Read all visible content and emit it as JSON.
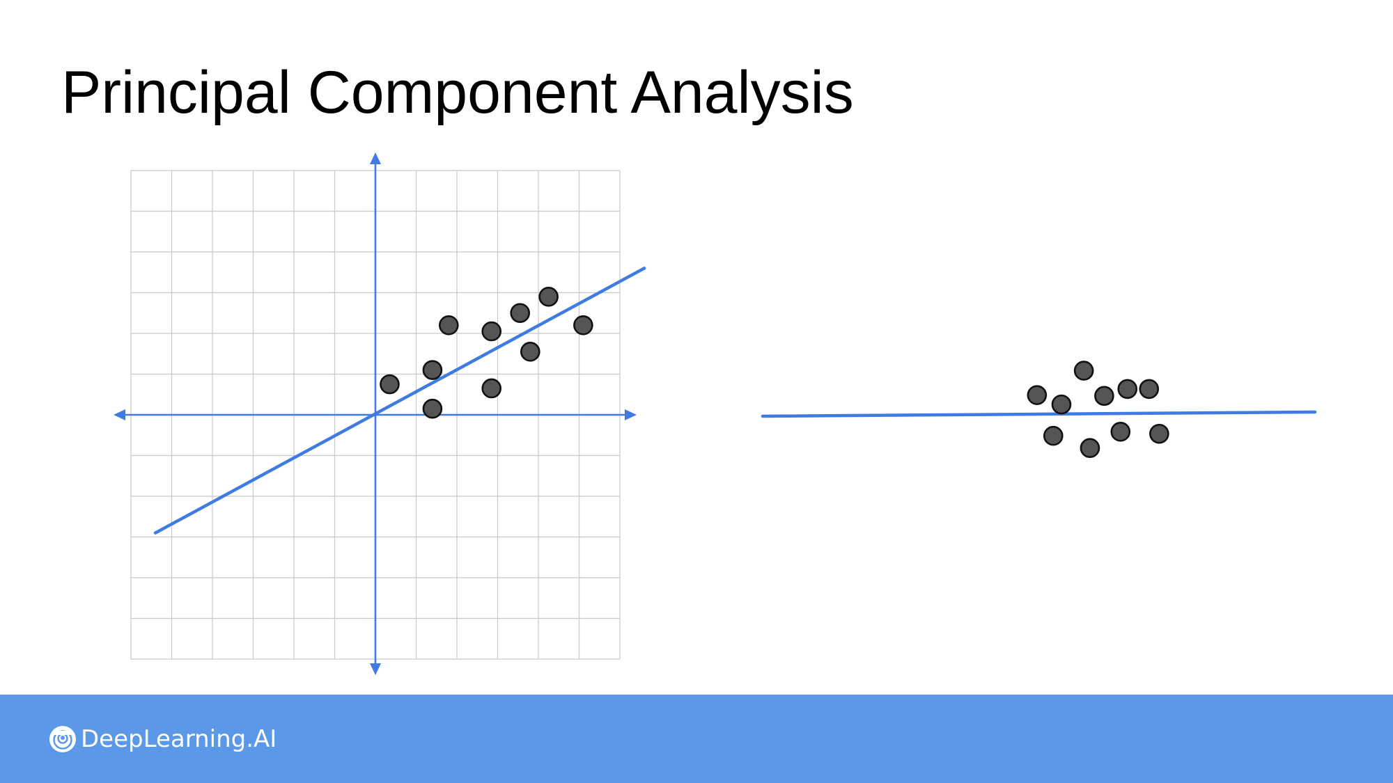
{
  "slide": {
    "title": "Principal Component Analysis"
  },
  "colors": {
    "axis": "#3f7be3",
    "grid": "#c8c8c8",
    "point_fill": "#555555",
    "point_stroke": "#111111",
    "footer": "#5b99e8",
    "brand_text": "#ffffff"
  },
  "left_plot": {
    "grid_cells": 12,
    "points": [
      [
        0.35,
        0.75
      ],
      [
        1.4,
        1.1
      ],
      [
        1.4,
        0.15
      ],
      [
        1.8,
        2.2
      ],
      [
        2.85,
        2.05
      ],
      [
        2.85,
        0.65
      ],
      [
        3.55,
        2.5
      ],
      [
        3.8,
        1.55
      ],
      [
        4.25,
        2.9
      ],
      [
        5.1,
        2.2
      ]
    ],
    "principal_axis": {
      "x": [
        -5.4,
        6.6
      ],
      "y": [
        -2.9,
        3.6
      ]
    }
  },
  "right_plot": {
    "points": [
      [
        -1.9,
        0.45
      ],
      [
        -1.5,
        -0.55
      ],
      [
        -1.3,
        0.22
      ],
      [
        -0.75,
        1.05
      ],
      [
        -0.6,
        -0.85
      ],
      [
        -0.25,
        0.43
      ],
      [
        0.15,
        -0.45
      ],
      [
        0.32,
        0.6
      ],
      [
        0.85,
        0.6
      ],
      [
        1.1,
        -0.5
      ]
    ]
  },
  "footer": {
    "brand": "DeepLearning.AI"
  }
}
